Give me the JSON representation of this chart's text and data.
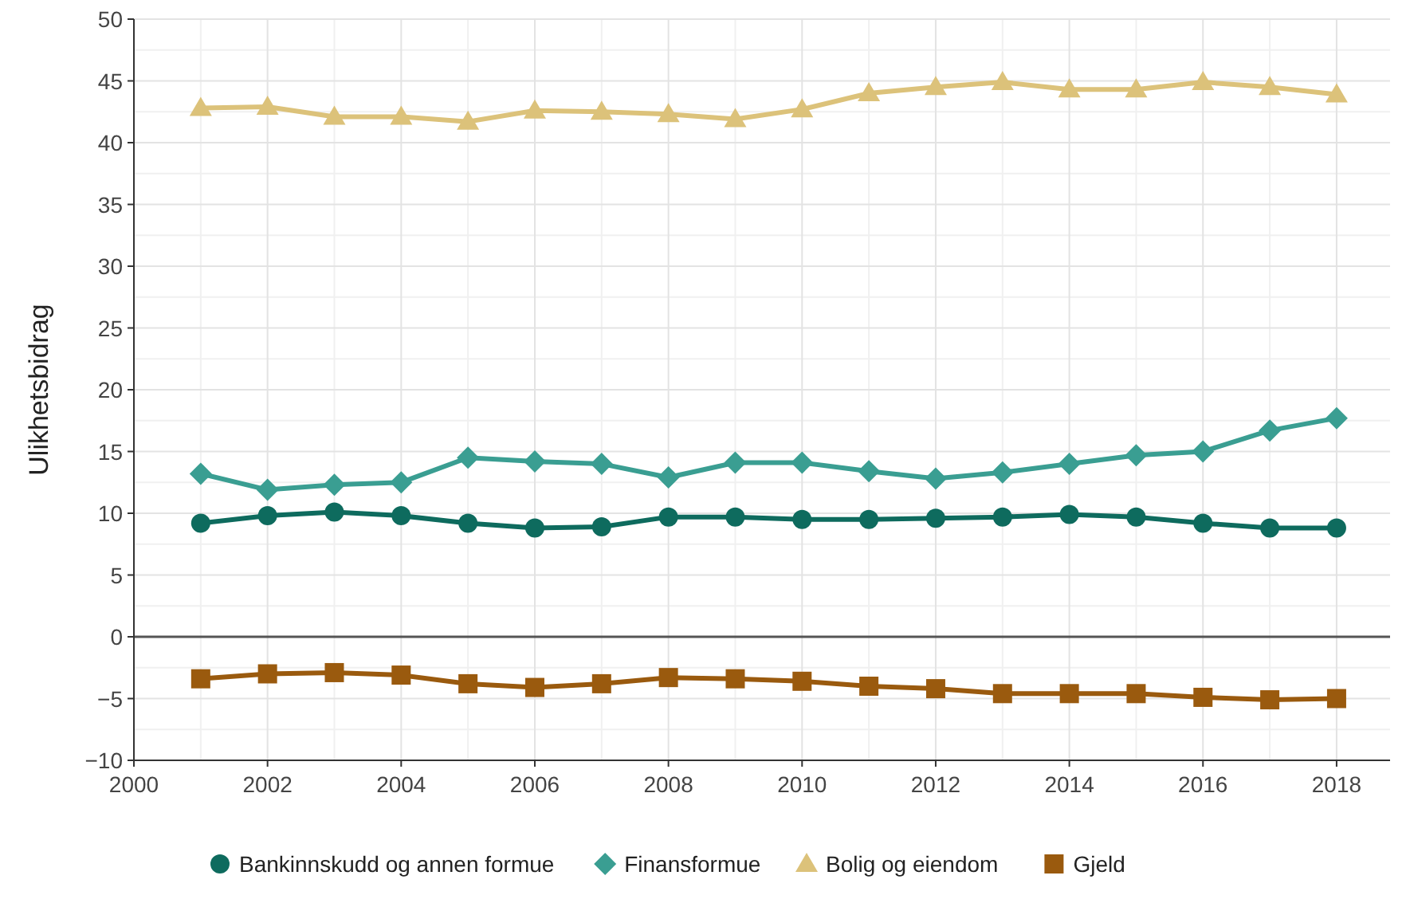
{
  "chart_data": {
    "type": "line",
    "ylabel": "Ulikhetsbidrag",
    "x": [
      2001,
      2002,
      2003,
      2004,
      2005,
      2006,
      2007,
      2008,
      2009,
      2010,
      2011,
      2012,
      2013,
      2014,
      2015,
      2016,
      2017,
      2018
    ],
    "xlim": [
      2000,
      2018.8
    ],
    "xticks": [
      2000,
      2002,
      2004,
      2006,
      2008,
      2010,
      2012,
      2014,
      2016,
      2018
    ],
    "ylim": [
      -10,
      50
    ],
    "yticks": [
      -10,
      -5,
      0,
      5,
      10,
      15,
      20,
      25,
      30,
      35,
      40,
      45,
      50
    ],
    "grid": true,
    "legend": "bottom",
    "line_style": "solid",
    "ref_lines": [
      {
        "axis": "y",
        "value": 0,
        "color": "#555555"
      }
    ],
    "series": [
      {
        "name": "Bankinnskudd og annen formue",
        "color": "#0e6b5e",
        "marker": "circle",
        "values": [
          9.2,
          9.8,
          10.1,
          9.8,
          9.2,
          8.8,
          8.9,
          9.7,
          9.7,
          9.5,
          9.5,
          9.6,
          9.7,
          9.9,
          9.7,
          9.2,
          8.8,
          8.8
        ]
      },
      {
        "name": "Finansformue",
        "color": "#3a9e92",
        "marker": "diamond",
        "values": [
          13.2,
          11.9,
          12.3,
          12.5,
          14.5,
          14.2,
          14.0,
          12.9,
          14.1,
          14.1,
          13.4,
          12.8,
          13.3,
          14.0,
          14.7,
          15.0,
          16.7,
          17.7
        ]
      },
      {
        "name": "Bolig og eiendom",
        "color": "#dcc27a",
        "marker": "triangle",
        "values": [
          42.8,
          42.9,
          42.1,
          42.1,
          41.7,
          42.6,
          42.5,
          42.3,
          41.9,
          42.7,
          44.0,
          44.5,
          44.9,
          44.3,
          44.3,
          44.9,
          44.5,
          43.9
        ]
      },
      {
        "name": "Gjeld",
        "color": "#9a5a0e",
        "marker": "square",
        "values": [
          -3.4,
          -3.0,
          -2.9,
          -3.1,
          -3.8,
          -4.1,
          -3.8,
          -3.3,
          -3.4,
          -3.6,
          -4.0,
          -4.2,
          -4.6,
          -4.6,
          -4.6,
          -4.9,
          -5.1,
          -5.0
        ]
      }
    ]
  }
}
